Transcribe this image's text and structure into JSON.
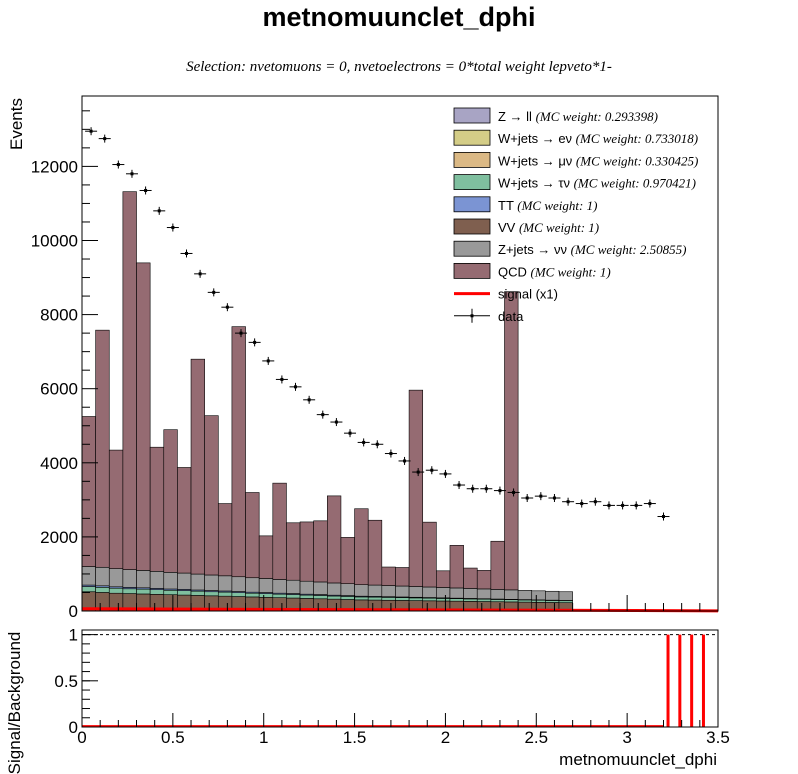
{
  "title": "metnomuunclet_dphi",
  "subtitle": "Selection: nvetomuons = 0, nvetoelectrons = 0*total weight lepveto*1-",
  "colors": {
    "qcd": "#956b72",
    "zjets_nunu": "#999999",
    "vv": "#7f5f4f",
    "tt": "#7b94d3",
    "wjets_taunu": "#7fbf9f",
    "wjets_munu": "#dbb985",
    "wjets_enu": "#d4cd87",
    "z_ll": "#a8a4c4",
    "signal": "#ff0000",
    "data": "#000000"
  },
  "legend": [
    {
      "key": "z_ll",
      "label": "Z → ll",
      "weight": "(MC weight: 0.293398)",
      "style": "box"
    },
    {
      "key": "wjets_enu",
      "label": "W+jets → eν",
      "weight": "(MC weight: 0.733018)",
      "style": "box"
    },
    {
      "key": "wjets_munu",
      "label": "W+jets → μν",
      "weight": "(MC weight: 0.330425)",
      "style": "box"
    },
    {
      "key": "wjets_taunu",
      "label": "W+jets → τν",
      "weight": "(MC weight: 0.970421)",
      "style": "box"
    },
    {
      "key": "tt",
      "label": "TT",
      "weight": "(MC weight: 1)",
      "style": "box"
    },
    {
      "key": "vv",
      "label": "VV",
      "weight": "(MC weight: 1)",
      "style": "box"
    },
    {
      "key": "zjets_nunu",
      "label": "Z+jets → νν",
      "weight": "(MC weight: 2.50855)",
      "style": "box"
    },
    {
      "key": "qcd",
      "label": "QCD",
      "weight": "(MC weight: 1)",
      "style": "box"
    },
    {
      "key": "signal",
      "label": "signal (x1)",
      "weight": "",
      "style": "line"
    },
    {
      "key": "data",
      "label": "data",
      "weight": "",
      "style": "marker"
    }
  ],
  "chart_data": [
    {
      "type": "bar",
      "stacked": true,
      "ylabel": "Events",
      "xlim": [
        0,
        3.5
      ],
      "ylim": [
        0,
        13900
      ],
      "yticks": [
        "0",
        "2000",
        "4000",
        "6000",
        "8000",
        "10000",
        "12000"
      ],
      "bin_width": 0.1,
      "bin_low_edges": [
        0.0,
        0.1,
        0.2,
        0.3,
        0.4,
        0.5,
        0.6,
        0.7,
        0.8,
        0.9,
        1.0,
        1.1,
        1.2,
        1.3,
        1.4,
        1.5,
        1.6,
        1.7,
        1.8,
        1.9,
        2.0,
        2.1,
        2.2,
        2.3,
        2.4,
        2.5,
        2.6,
        2.7,
        2.8,
        2.9,
        3.0,
        3.1,
        3.2,
        3.3,
        3.4
      ],
      "bin_width_note": "bins of 0.1 from 0.0 to 3.5 (bins 0.0-3.2 filled with background, total 32.5 half-bins approximated as 0.075 width)",
      "background_bins_x": [
        0.0,
        0.075,
        0.15,
        0.225,
        0.3,
        0.375,
        0.45,
        0.525,
        0.6,
        0.675,
        0.75,
        0.825,
        0.9,
        0.975,
        1.05,
        1.125,
        1.2,
        1.275,
        1.35,
        1.425,
        1.5,
        1.575,
        1.65,
        1.725,
        1.8,
        1.875,
        1.95,
        2.025,
        2.1,
        2.175,
        2.25,
        2.325,
        2.4,
        2.475,
        2.55,
        2.625,
        2.7,
        2.775,
        2.85,
        2.925,
        3.0,
        3.075,
        3.15
      ],
      "background_bin_width": 0.075,
      "series": [
        {
          "key": "vv",
          "name": "VV",
          "values": [
            520,
            500,
            480,
            470,
            460,
            450,
            440,
            430,
            420,
            410,
            400,
            390,
            380,
            370,
            360,
            350,
            340,
            330,
            320,
            310,
            300,
            295,
            290,
            285,
            280,
            275,
            270,
            265,
            260,
            255,
            250,
            245,
            240,
            235,
            230,
            225,
            220,
            215,
            210,
            205,
            200,
            195,
            190
          ]
        },
        {
          "key": "wjets_taunu",
          "name": "W+jets → τν",
          "values": [
            140,
            140,
            135,
            130,
            130,
            125,
            120,
            120,
            115,
            110,
            110,
            105,
            100,
            100,
            95,
            95,
            90,
            90,
            85,
            85,
            80,
            80,
            78,
            76,
            74,
            72,
            70,
            68,
            66,
            64,
            62,
            60,
            58,
            56,
            54,
            52,
            50,
            48,
            46,
            44,
            42,
            40,
            38
          ]
        },
        {
          "key": "tt",
          "name": "TT",
          "values": [
            40,
            40,
            38,
            38,
            36,
            36,
            34,
            34,
            32,
            32,
            30,
            30,
            28,
            28,
            26,
            26,
            24,
            24,
            22,
            22,
            20,
            20,
            19,
            18,
            17,
            16,
            15,
            14,
            13,
            12,
            11,
            10,
            10,
            9,
            9,
            8,
            8,
            7,
            7,
            6,
            6,
            5,
            5
          ]
        },
        {
          "key": "zjets_nunu",
          "name": "Z+jets → νν",
          "values": [
            500,
            500,
            490,
            480,
            470,
            460,
            450,
            440,
            430,
            420,
            410,
            400,
            390,
            380,
            370,
            360,
            350,
            340,
            330,
            320,
            310,
            305,
            300,
            295,
            290,
            285,
            280,
            275,
            270,
            265,
            260,
            255,
            250,
            245,
            240,
            235,
            230,
            225,
            220,
            215,
            210,
            205,
            200
          ]
        },
        {
          "key": "qcd",
          "name": "QCD",
          "values": [
            4050,
            6400,
            3200,
            10200,
            8300,
            3350,
            3850,
            2850,
            5800,
            4300,
            1950,
            6750,
            2300,
            1150,
            2600,
            1550,
            1600,
            1650,
            2350,
            1250,
            2050,
            1750,
            500,
            500,
            5300,
            1750,
            450,
            1150,
            550,
            500,
            1300,
            8050,
            0,
            0,
            0,
            0,
            0,
            0,
            0,
            0,
            0,
            0,
            0
          ]
        }
      ],
      "qcd_note": "QCD heights shown per bin above the other backgrounds",
      "data_points": {
        "x": [
          0.05,
          0.125,
          0.2,
          0.275,
          0.35,
          0.425,
          0.5,
          0.575,
          0.65,
          0.725,
          0.8,
          0.875,
          0.95,
          1.025,
          1.1,
          1.175,
          1.25,
          1.325,
          1.4,
          1.475,
          1.55,
          1.625,
          1.7,
          1.775,
          1.85,
          1.925,
          2.0,
          2.075,
          2.15,
          2.225,
          2.3,
          2.375,
          2.45,
          2.525,
          2.6,
          2.675,
          2.75,
          2.825,
          2.9,
          2.975,
          3.05,
          3.125,
          3.2
        ],
        "y": [
          12950,
          12750,
          12050,
          11800,
          11350,
          10800,
          10350,
          9650,
          9100,
          8600,
          8200,
          7500,
          7250,
          6750,
          6250,
          6050,
          5700,
          5300,
          5100,
          4800,
          4550,
          4500,
          4250,
          4050,
          3750,
          3800,
          3700,
          3400,
          3300,
          3300,
          3250,
          3200,
          3050,
          3100,
          3050,
          2950,
          2900,
          2950,
          2850,
          2850,
          2850,
          2900,
          2550
        ]
      },
      "signal_values_note": "signal near zero across range"
    },
    {
      "type": "line",
      "ylabel": "Signal/Background",
      "xlabel": "metnomuunclet_dphi",
      "xlim": [
        0,
        3.5
      ],
      "ylim": [
        0,
        1.05
      ],
      "xticks": [
        "0",
        "0.5",
        "1",
        "1.5",
        "2",
        "2.5",
        "3",
        "3.5"
      ],
      "yticks": [
        "0",
        "0.5",
        "1"
      ],
      "x": [
        0.05,
        0.15,
        0.25,
        0.35,
        0.45,
        0.55,
        0.65,
        0.75,
        0.85,
        0.95,
        1.05,
        1.15,
        1.25,
        1.35,
        1.45,
        1.55,
        1.65,
        1.75,
        1.85,
        1.95,
        2.05,
        2.15,
        2.25,
        2.35,
        2.45,
        2.55,
        2.65,
        2.75,
        2.85,
        2.95,
        3.05,
        3.15,
        3.225,
        3.29,
        3.355,
        3.42
      ],
      "values": [
        0.01,
        0.01,
        0.01,
        0.01,
        0.01,
        0.01,
        0.01,
        0.01,
        0.01,
        0.01,
        0.01,
        0.01,
        0.01,
        0.01,
        0.01,
        0.01,
        0.01,
        0.01,
        0.01,
        0.01,
        0.01,
        0.01,
        0.01,
        0.01,
        0.01,
        0.01,
        0.01,
        0.01,
        0.01,
        0.01,
        0.01,
        0.01,
        1,
        1,
        1,
        1
      ],
      "reference_line": 1
    }
  ]
}
